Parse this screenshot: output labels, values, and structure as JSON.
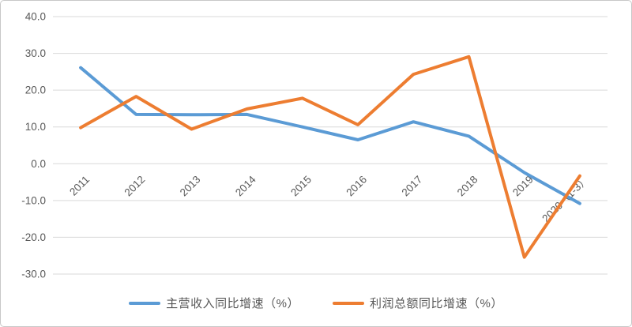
{
  "chart_data": {
    "type": "line",
    "categories": [
      "2011",
      "2012",
      "2013",
      "2014",
      "2015",
      "2016",
      "2017",
      "2018",
      "2019",
      "2020（1-3）"
    ],
    "series": [
      {
        "name": "主营收入同比增速（%）",
        "color": "#5B9BD5",
        "values": [
          26.1,
          13.4,
          13.3,
          13.4,
          10.0,
          6.5,
          11.4,
          7.5,
          -2.4,
          -10.8
        ]
      },
      {
        "name": "利润总额同比增速（%）",
        "color": "#ED7D31",
        "values": [
          9.8,
          18.3,
          9.4,
          14.9,
          17.8,
          10.6,
          24.3,
          29.1,
          -25.4,
          -3.3
        ]
      }
    ],
    "title": "",
    "xlabel": "",
    "ylabel": "",
    "ylim": [
      -30,
      40
    ],
    "y_tick_step": 10,
    "y_ticks": [
      "40.0",
      "30.0",
      "20.0",
      "10.0",
      "0.0",
      "-10.0",
      "-20.0",
      "-30.0"
    ],
    "grid": true,
    "legend_position": "bottom",
    "colors": {
      "gridline": "#D9D9D9",
      "axis_label": "#595959",
      "background": "#FFFFFF",
      "border": "#C8C8C8"
    }
  }
}
